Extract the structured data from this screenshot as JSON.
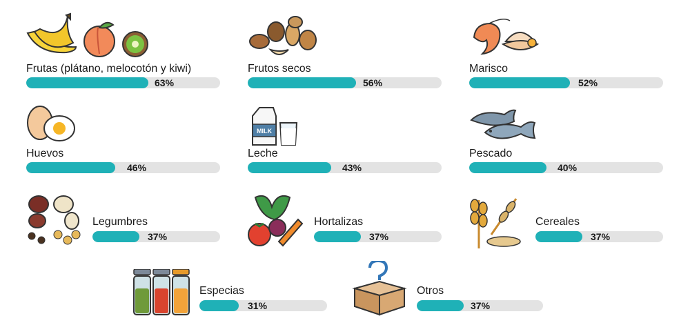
{
  "chart_data": {
    "type": "bar",
    "categories": [
      "Frutas (plátano, melocotón y kiwi)",
      "Frutos secos",
      "Marisco",
      "Huevos",
      "Leche",
      "Pescado",
      "Legumbres",
      "Hortalizas",
      "Cereales",
      "Especias",
      "Otros"
    ],
    "values": [
      63,
      56,
      52,
      46,
      43,
      40,
      37,
      37,
      37,
      31,
      37
    ],
    "unit": "%",
    "ylim": [
      0,
      100
    ]
  },
  "items": [
    {
      "label": "Frutas (plátano, melocotón y kiwi)",
      "value": 63,
      "value_label": "63%",
      "icon": "fruits-icon"
    },
    {
      "label": "Frutos secos",
      "value": 56,
      "value_label": "56%",
      "icon": "nuts-icon"
    },
    {
      "label": "Marisco",
      "value": 52,
      "value_label": "52%",
      "icon": "shellfish-icon"
    },
    {
      "label": "Huevos",
      "value": 46,
      "value_label": "46%",
      "icon": "eggs-icon"
    },
    {
      "label": "Leche",
      "value": 43,
      "value_label": "43%",
      "icon": "milk-icon",
      "icon_text": "MILK"
    },
    {
      "label": "Pescado",
      "value": 40,
      "value_label": "40%",
      "icon": "fish-icon"
    },
    {
      "label": "Legumbres",
      "value": 37,
      "value_label": "37%",
      "icon": "legumes-icon"
    },
    {
      "label": "Hortalizas",
      "value": 37,
      "value_label": "37%",
      "icon": "vegetables-icon"
    },
    {
      "label": "Cereales",
      "value": 37,
      "value_label": "37%",
      "icon": "cereals-icon"
    },
    {
      "label": "Especias",
      "value": 31,
      "value_label": "31%",
      "icon": "spices-icon"
    },
    {
      "label": "Otros",
      "value": 37,
      "value_label": "37%",
      "icon": "box-question-icon"
    }
  ],
  "colors": {
    "fill": "#1fb1b7",
    "track": "#e3e3e3",
    "text": "#1b1b1b"
  }
}
